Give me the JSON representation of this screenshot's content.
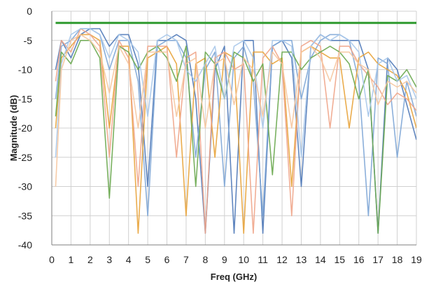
{
  "chart_data": {
    "type": "line",
    "title": "",
    "xlabel": "Freq (GHz)",
    "ylabel": "Magnitude (dB)",
    "xlim": [
      0,
      19
    ],
    "ylim": [
      -40,
      0
    ],
    "xticks": [
      0,
      1,
      2,
      3,
      4,
      5,
      6,
      7,
      8,
      9,
      10,
      11,
      12,
      13,
      14,
      15,
      16,
      17,
      18,
      19
    ],
    "yticks": [
      0,
      -5,
      -10,
      -15,
      -20,
      -25,
      -30,
      -35,
      -40
    ],
    "grid": true,
    "legend": "none",
    "limit_line": {
      "y": -2,
      "x": [
        0.2,
        19
      ],
      "color": "#2e9a2e"
    },
    "series": [
      {
        "color": "#4f79b8",
        "x": [
          0.2,
          0.5,
          1,
          1.5,
          2,
          2.5,
          3,
          3.5,
          4,
          4.5,
          5,
          5.5,
          6,
          6.5,
          7,
          7.5,
          8,
          8.5,
          9,
          9.5,
          10,
          10.5,
          11,
          11.5,
          12,
          12.5,
          13,
          13.5,
          14,
          14.5,
          15,
          15.5,
          16,
          16.5,
          17,
          17.5,
          18,
          18.5,
          19
        ],
        "y": [
          -10,
          -5,
          -8,
          -4,
          -3,
          -3,
          -6,
          -4,
          -4,
          -9,
          -30,
          -5,
          -5,
          -4,
          -5,
          -15,
          -38,
          -10,
          -6,
          -38,
          -5,
          -5,
          -38,
          -6,
          -5,
          -8,
          -30,
          -6,
          -4,
          -5,
          -5,
          -5,
          -5,
          -10,
          -38,
          -8,
          -10,
          -16,
          -22
        ]
      },
      {
        "color": "#7ea6d6",
        "x": [
          0.2,
          0.5,
          1,
          1.5,
          2,
          2.5,
          3,
          3.5,
          4,
          4.5,
          5,
          5.5,
          6,
          6.5,
          7,
          7.5,
          8,
          8.5,
          9,
          9.5,
          10,
          10.5,
          11,
          11.5,
          12,
          12.5,
          13,
          13.5,
          14,
          14.5,
          15,
          15.5,
          16,
          16.5,
          17,
          17.5,
          18,
          18.5,
          19
        ],
        "y": [
          -15,
          -6,
          -5,
          -3,
          -3,
          -4,
          -10,
          -5,
          -5,
          -12,
          -35,
          -6,
          -5,
          -5,
          -8,
          -25,
          -10,
          -7,
          -30,
          -8,
          -6,
          -12,
          -35,
          -6,
          -5,
          -5,
          -15,
          -8,
          -5,
          -4,
          -4,
          -5,
          -12,
          -35,
          -8,
          -9,
          -25,
          -12,
          -18
        ]
      },
      {
        "color": "#e8a33a",
        "x": [
          0.2,
          0.5,
          1,
          1.5,
          2,
          2.5,
          3,
          3.5,
          4,
          4.5,
          5,
          5.5,
          6,
          6.5,
          7,
          7.5,
          8,
          8.5,
          9,
          9.5,
          10,
          10.5,
          11,
          11.5,
          12,
          12.5,
          13,
          13.5,
          14,
          14.5,
          15,
          15.5,
          16,
          16.5,
          17,
          17.5,
          18,
          18.5,
          19
        ],
        "y": [
          -20,
          -8,
          -6,
          -4,
          -4,
          -5,
          -20,
          -6,
          -6,
          -38,
          -8,
          -7,
          -6,
          -9,
          -35,
          -9,
          -8,
          -25,
          -7,
          -8,
          -38,
          -7,
          -7,
          -9,
          -8,
          -30,
          -7,
          -6,
          -7,
          -8,
          -8,
          -20,
          -8,
          -7,
          -9,
          -10,
          -11,
          -14,
          -20
        ]
      },
      {
        "color": "#f0a58a",
        "x": [
          0.2,
          0.5,
          1,
          1.5,
          2,
          2.5,
          3,
          3.5,
          4,
          4.5,
          5,
          5.5,
          6,
          6.5,
          7,
          7.5,
          8,
          8.5,
          9,
          9.5,
          10,
          10.5,
          11,
          11.5,
          12,
          12.5,
          13,
          13.5,
          14,
          14.5,
          15,
          15.5,
          16,
          16.5,
          17,
          17.5,
          18,
          18.5,
          19
        ],
        "y": [
          -12,
          -5,
          -7,
          -3,
          -4,
          -6,
          -25,
          -5,
          -8,
          -30,
          -6,
          -6,
          -6,
          -25,
          -8,
          -7,
          -38,
          -8,
          -7,
          -10,
          -9,
          -38,
          -8,
          -6,
          -9,
          -35,
          -6,
          -5,
          -6,
          -20,
          -6,
          -6,
          -9,
          -11,
          -13,
          -16,
          -14,
          -15,
          -17
        ]
      },
      {
        "color": "#6aa84f",
        "x": [
          0.2,
          0.5,
          1,
          1.5,
          2,
          2.5,
          3,
          3.5,
          4,
          4.5,
          5,
          5.5,
          6,
          6.5,
          7,
          7.5,
          8,
          8.5,
          9,
          9.5,
          10,
          10.5,
          11,
          11.5,
          12,
          12.5,
          13,
          13.5,
          14,
          14.5,
          15,
          15.5,
          16,
          16.5,
          17,
          17.5,
          18,
          18.5,
          19
        ],
        "y": [
          -18,
          -7,
          -9,
          -5,
          -5,
          -8,
          -32,
          -6,
          -7,
          -10,
          -7,
          -6,
          -8,
          -12,
          -6,
          -30,
          -7,
          -9,
          -15,
          -7,
          -8,
          -12,
          -9,
          -28,
          -7,
          -7,
          -10,
          -8,
          -7,
          -6,
          -7,
          -9,
          -15,
          -10,
          -38,
          -11,
          -12,
          -10,
          -13
        ]
      },
      {
        "color": "#a9c8ea",
        "x": [
          0.2,
          0.5,
          1,
          1.5,
          2,
          2.5,
          3,
          3.5,
          4,
          4.5,
          5,
          5.5,
          6,
          6.5,
          7,
          7.5,
          8,
          8.5,
          9,
          9.5,
          10,
          10.5,
          11,
          11.5,
          12,
          12.5,
          13,
          13.5,
          14,
          14.5,
          15,
          15.5,
          16,
          16.5,
          17,
          17.5,
          18,
          18.5,
          19
        ],
        "y": [
          -25,
          -9,
          -4,
          -3,
          -3,
          -4,
          -8,
          -4,
          -5,
          -7,
          -18,
          -5,
          -4,
          -5,
          -10,
          -12,
          -9,
          -6,
          -15,
          -6,
          -5,
          -8,
          -20,
          -5,
          -5,
          -6,
          -25,
          -6,
          -4,
          -5,
          -4,
          -5,
          -7,
          -18,
          -9,
          -8,
          -12,
          -11,
          -15
        ]
      },
      {
        "color": "#f6c79e",
        "x": [
          0.2,
          0.5,
          1,
          1.5,
          2,
          2.5,
          3,
          3.5,
          4,
          4.5,
          5,
          5.5,
          6,
          6.5,
          7,
          7.5,
          8,
          8.5,
          9,
          9.5,
          10,
          10.5,
          11,
          11.5,
          12,
          12.5,
          13,
          13.5,
          14,
          14.5,
          15,
          15.5,
          16,
          16.5,
          17,
          17.5,
          18,
          18.5,
          19
        ],
        "y": [
          -30,
          -10,
          -5,
          -4,
          -5,
          -7,
          -14,
          -6,
          -9,
          -20,
          -7,
          -7,
          -7,
          -18,
          -9,
          -8,
          -20,
          -9,
          -8,
          -16,
          -8,
          -10,
          -18,
          -7,
          -9,
          -20,
          -7,
          -6,
          -8,
          -12,
          -7,
          -7,
          -9,
          -10,
          -16,
          -12,
          -13,
          -12,
          -14
        ]
      }
    ]
  }
}
